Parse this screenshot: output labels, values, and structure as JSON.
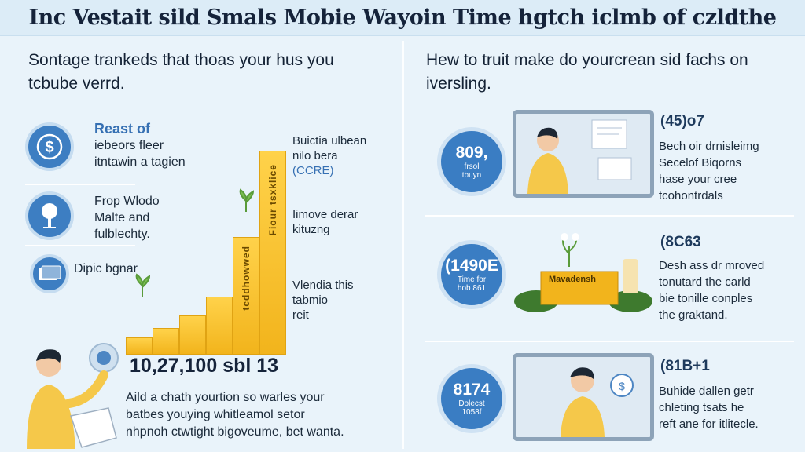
{
  "title": "Inc Vestait sild Smals Mobie Wayoin Time hgtch iclmb of czldthe",
  "left": {
    "heading": "Sontage trankeds that thoas your hus you tcbube verrd.",
    "features": [
      {
        "icon": "dollar-icon",
        "title": "Reast of",
        "lines": [
          "iebeors fleer",
          "itntawin a tagien"
        ]
      },
      {
        "icon": "lightbulb-icon",
        "title": "",
        "lines": [
          "Frop Wlodo",
          "Malte and",
          "fulblechty."
        ]
      },
      {
        "icon": "card-icon",
        "title": "",
        "lines": [
          "Dipic bgnar"
        ]
      }
    ],
    "chart_labels": [
      {
        "lines": [
          "Buictia ulbean",
          "nilo bera",
          "(CCRE)"
        ]
      },
      {
        "lines": [
          "Iimove derar",
          "kituzng"
        ]
      },
      {
        "lines": [
          "Vlendia this",
          "tabmio",
          "reit"
        ]
      }
    ],
    "bar_text_tall": "Fiour tsxklice",
    "bar_text_mid": "tcddhowwed",
    "big_stat": "10,27,100 sbl 13",
    "description": [
      "Aild a chath yourtion so warles your",
      "batbes youying whitleamol setor",
      "nhpnoh ctwtight bigoveume, bet wanta."
    ]
  },
  "right": {
    "heading": "Hew to truit make do yourcrean sid fachs on iversling.",
    "rows": [
      {
        "circle_num": "809,",
        "circle_sub": [
          "frsol",
          "tbuyn"
        ],
        "code": "(45)o7",
        "lines": [
          "Bech oir drnisleimg",
          "Secelof Biqorns",
          "hase your cree",
          "tcohontrdals"
        ]
      },
      {
        "circle_num": "(1490E",
        "circle_sub": [
          "Time for",
          "hob 861"
        ],
        "sign": "Mavadensh",
        "code": "(8C63",
        "lines": [
          "Desh ass dr mroved",
          "tonutard the carld",
          "bie tonille conples",
          "the graktand."
        ]
      },
      {
        "circle_num": "8174",
        "circle_sub": [
          "Dolecst",
          "1058f"
        ],
        "code": "(81B+1",
        "lines": [
          "Buhide dallen getr",
          "chleting tsats he",
          "reft ane for itlitecle."
        ]
      }
    ]
  }
}
